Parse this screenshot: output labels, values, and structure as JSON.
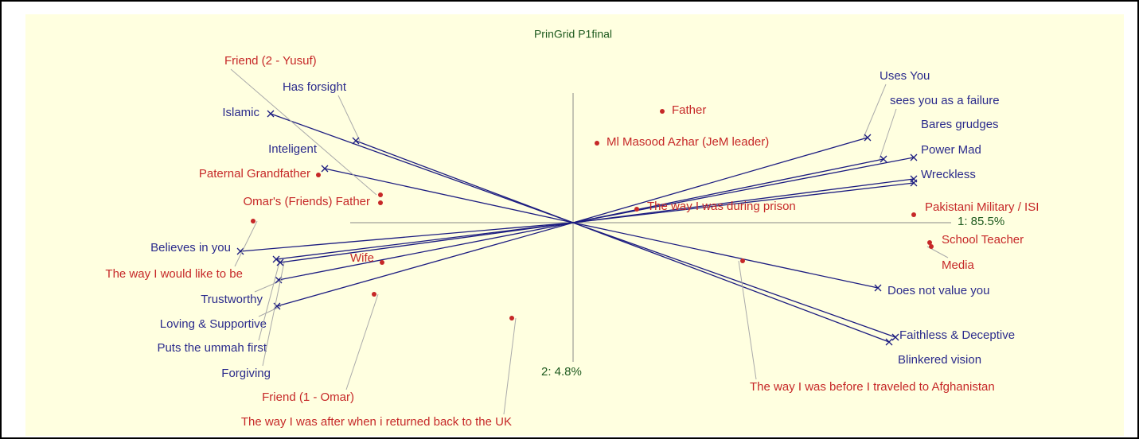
{
  "title": "PrinGrid P1final",
  "axes": {
    "x": "1: 85.5%",
    "y": "2: 4.8%"
  },
  "constructs": [
    "Islamic",
    "Has forsight",
    "Inteligent",
    "Believes in you",
    "Trustworthy",
    "Loving & Supportive",
    "Puts the ummah first",
    "Forgiving",
    "Uses You",
    "sees you as a failure",
    "Bares grudges",
    "Power Mad",
    "Wreckless",
    "Does not value you",
    "Faithless & Deceptive",
    "Blinkered vision"
  ],
  "elements": [
    "Friend (2 - Yusuf)",
    "Father",
    "Ml Masood Azhar (JeM leader)",
    "Paternal Grandfather",
    "Omar's (Friends) Father",
    "The way I would like to be",
    "Wife",
    "The way I was during prison",
    "Pakistani Military / ISI",
    "School Teacher",
    "Media",
    "The way I was before I traveled to Afghanistan",
    "Friend (1 - Omar)",
    "The way I was after when i returned back to the UK"
  ]
}
